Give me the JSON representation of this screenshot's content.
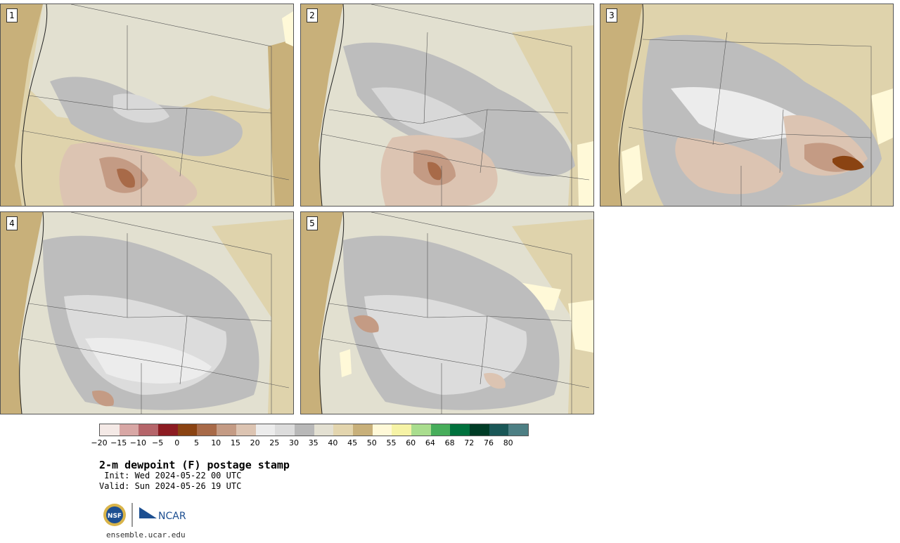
{
  "panels": [
    {
      "label": "1"
    },
    {
      "label": "2"
    },
    {
      "label": "3"
    },
    {
      "label": "4"
    },
    {
      "label": "5"
    }
  ],
  "colorbar": {
    "colors": [
      "#f4e9e6",
      "#d8a7a5",
      "#b5656a",
      "#8c1c22",
      "#8a4312",
      "#a86a48",
      "#c49b84",
      "#dcc4b2",
      "#ececec",
      "#dcdcdc",
      "#b8b8b8",
      "#e3e0d2",
      "#e3d5ae",
      "#c8b07a",
      "#fff9d8",
      "#f6f3a6",
      "#a9dd8e",
      "#47ad5b",
      "#00713d",
      "#003c26",
      "#1a5757",
      "#4d7f84"
    ],
    "tick_labels": [
      "−20",
      "−15",
      "−10",
      "−5",
      "0",
      "5",
      "10",
      "15",
      "20",
      "25",
      "30",
      "35",
      "40",
      "45",
      "50",
      "55",
      "60",
      "64",
      "68",
      "72",
      "76",
      "80"
    ]
  },
  "title": "2-m dewpoint (F) postage stamp",
  "init": " Init: Wed 2024-05-22 00 UTC",
  "valid": "Valid: Sun 2024-05-26 19 UTC",
  "logos": {
    "nsf": "NSF",
    "ncar": "NCAR"
  },
  "site": "ensemble.ucar.edu"
}
